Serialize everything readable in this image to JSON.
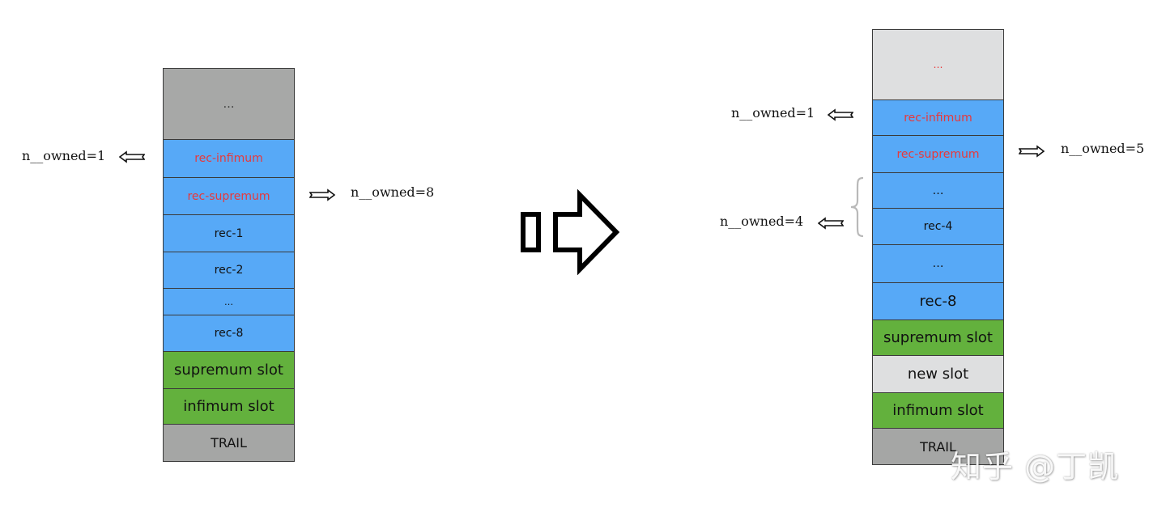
{
  "left_stack": {
    "top": "…",
    "rec_infimum": "rec-infimum",
    "rec_supremum": "rec-supremum",
    "rec_1": "rec-1",
    "rec_2": "rec-2",
    "ellipsis": "…",
    "rec_8": "rec-8",
    "supremum_slot": "supremum slot",
    "infimum_slot": "infimum slot",
    "trail": "TRAIL"
  },
  "left_labels": {
    "infimum_owned": "n__owned=1",
    "supremum_owned": "n__owned=8"
  },
  "right_stack": {
    "top": "…",
    "rec_infimum": "rec-infimum",
    "rec_supremum": "rec-supremum",
    "ellipsis_1": "…",
    "rec_4": "rec-4",
    "ellipsis_2": "…",
    "rec_8": "rec-8",
    "supremum_slot": "supremum slot",
    "new_slot": "new slot",
    "infimum_slot": "infimum slot",
    "trail": "TRAIL"
  },
  "right_labels": {
    "infimum_owned": "n__owned=1",
    "supremum_owned": "n__owned=5",
    "new_slot_owned": "n__owned=4"
  },
  "watermark": "知乎 @丁凯",
  "colors": {
    "record_blue": "#57a9f7",
    "slot_green": "#63b13d",
    "trail_gray": "#a5a6a5",
    "new_slot_gray": "#dedfe0",
    "label_red": "#e8383a"
  }
}
